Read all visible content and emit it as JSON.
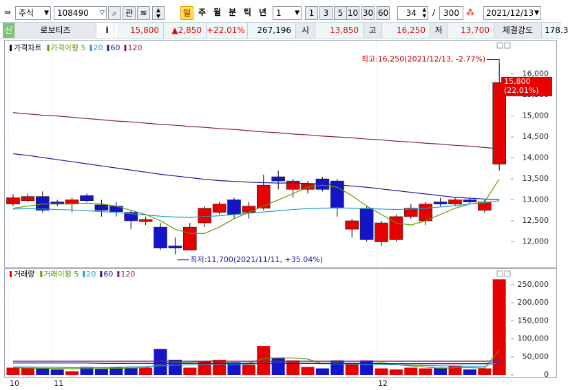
{
  "toolbar": {
    "market": "주식",
    "code": "108490",
    "watch": "관",
    "periods": [
      "일",
      "주",
      "월",
      "분",
      "틱",
      "년"
    ],
    "interval": "1",
    "intervals": [
      "1",
      "3",
      "5",
      "10",
      "30",
      "60"
    ],
    "count": "34",
    "separator": "/",
    "total": "300",
    "date": "2021/12/13"
  },
  "quote": {
    "badge": "신",
    "name": "로보티즈",
    "info": "i",
    "price": "15,800",
    "change": "▲2,850",
    "change_rate": "+22.01%",
    "volume": "267,196",
    "open_label": "시",
    "open": "13,850",
    "high_label": "고",
    "high": "16,250",
    "low_label": "저",
    "low": "13,700",
    "strength_label": "체결강도",
    "strength": "178.3"
  },
  "chart_data": [
    {
      "type": "candlestick",
      "title": "가격차트",
      "up_color": "#e60000",
      "down_color": "#1414c8",
      "categories": [
        "10",
        null,
        null,
        "11",
        null,
        null,
        null,
        null,
        null,
        null,
        null,
        null,
        null,
        null,
        null,
        null,
        null,
        null,
        null,
        null,
        null,
        null,
        null,
        null,
        null,
        "12",
        null,
        null,
        null,
        null,
        null,
        null,
        null,
        null
      ],
      "open": [
        12900,
        12980,
        13080,
        12950,
        12900,
        13100,
        12880,
        12850,
        12700,
        12480,
        12350,
        11900,
        11800,
        12450,
        12700,
        13000,
        12700,
        12800,
        13550,
        13250,
        13250,
        13500,
        13450,
        12300,
        12800,
        12000,
        12050,
        12600,
        12500,
        12950,
        12900,
        13000,
        12750,
        13850
      ],
      "high": [
        13130,
        13150,
        13200,
        13000,
        13050,
        13150,
        13000,
        12950,
        12750,
        12600,
        12450,
        12100,
        12450,
        12850,
        12950,
        13050,
        12950,
        13600,
        13700,
        13500,
        13450,
        13550,
        13500,
        12550,
        12850,
        12500,
        12650,
        12900,
        12950,
        13050,
        13050,
        13050,
        13000,
        16250
      ],
      "low": [
        12850,
        12950,
        12700,
        12850,
        12700,
        12950,
        12600,
        12600,
        12300,
        12400,
        11800,
        11700,
        11800,
        12350,
        12650,
        12550,
        12550,
        12750,
        13250,
        13050,
        13150,
        13200,
        12600,
        12100,
        12000,
        11900,
        12000,
        12550,
        12400,
        12850,
        12850,
        12900,
        12700,
        13700
      ],
      "close": [
        13050,
        13080,
        12750,
        12900,
        13000,
        12980,
        12750,
        12720,
        12500,
        12530,
        11850,
        11850,
        12350,
        12800,
        12900,
        12650,
        12850,
        13350,
        13450,
        13450,
        13380,
        13250,
        12800,
        12500,
        12050,
        12450,
        12600,
        12800,
        12900,
        12900,
        13000,
        12950,
        12950,
        15800
      ],
      "overlays": [
        {
          "name": "가격이평 5",
          "color": "#5a9a00",
          "values": [
            12800,
            12850,
            12900,
            12900,
            12900,
            12920,
            12900,
            12850,
            12750,
            12650,
            12500,
            12300,
            12200,
            12200,
            12350,
            12550,
            12700,
            12850,
            13000,
            13150,
            13300,
            13350,
            13300,
            13100,
            12850,
            12650,
            12450,
            12400,
            12500,
            12650,
            12800,
            12900,
            12950,
            13500
          ]
        },
        {
          "name": "20",
          "color": "#1e9ad6",
          "values": [
            12780,
            12790,
            12780,
            12770,
            12760,
            12740,
            12720,
            12700,
            12670,
            12640,
            12610,
            12590,
            12580,
            12600,
            12620,
            12650,
            12680,
            12710,
            12740,
            12770,
            12790,
            12800,
            12810,
            12800,
            12790,
            12780,
            12770,
            12780,
            12800,
            12830,
            12860,
            12900,
            12930,
            12980
          ]
        },
        {
          "name": "60",
          "color": "#1a1a9a",
          "values": [
            14100,
            14060,
            14010,
            13960,
            13910,
            13860,
            13810,
            13760,
            13710,
            13660,
            13610,
            13570,
            13530,
            13490,
            13460,
            13440,
            13420,
            13410,
            13400,
            13400,
            13390,
            13380,
            13360,
            13330,
            13300,
            13260,
            13220,
            13180,
            13140,
            13100,
            13060,
            13040,
            13020,
            13010
          ]
        },
        {
          "name": "120",
          "color": "#8a1a5a",
          "values": [
            15080,
            15050,
            15020,
            15000,
            14970,
            14940,
            14910,
            14880,
            14860,
            14830,
            14800,
            14780,
            14750,
            14730,
            14700,
            14680,
            14650,
            14620,
            14600,
            14570,
            14550,
            14520,
            14500,
            14480,
            14450,
            14430,
            14400,
            14380,
            14350,
            14330,
            14300,
            14280,
            14250,
            14220
          ]
        }
      ],
      "ylim": [
        11450,
        16750
      ],
      "yticks": [
        {
          "value": 12000,
          "label": "12,000"
        },
        {
          "value": 12500,
          "label": "12,500"
        },
        {
          "value": 13000,
          "label": "13,000"
        },
        {
          "value": 13500,
          "label": "13,500"
        },
        {
          "value": 14000,
          "label": "14,000"
        },
        {
          "value": 14500,
          "label": "14,500"
        },
        {
          "value": 15000,
          "label": "15,000"
        },
        {
          "value": 15500,
          "label": "15,500"
        },
        {
          "value": 16000,
          "label": "16,000"
        }
      ],
      "price_tag": [
        "15,800",
        "(22.01%)"
      ],
      "high_annotation": "최고:16,250(2021/12/13, -2.77%)",
      "low_annotation": "최저:11,700(2021/11/11, +35.04%)"
    },
    {
      "type": "bar",
      "title": "거래량",
      "values": [
        20000,
        20000,
        18000,
        15000,
        10000,
        22000,
        18000,
        20000,
        20000,
        20000,
        72000,
        42000,
        20000,
        38000,
        42000,
        35000,
        28000,
        80000,
        48000,
        40000,
        22000,
        18000,
        40000,
        30000,
        40000,
        18000,
        15000,
        20000,
        18000,
        20000,
        25000,
        15000,
        18000,
        265000
      ],
      "overlays": [
        {
          "name": "거래이평 5",
          "color": "#5a9a00",
          "values": [
            20000,
            19000,
            18000,
            18000,
            17000,
            17000,
            17000,
            18000,
            19000,
            20000,
            30000,
            35000,
            35000,
            38000,
            39000,
            31000,
            33000,
            45000,
            47000,
            47000,
            44000,
            31000,
            34000,
            30000,
            30000,
            34000,
            28000,
            25000,
            22000,
            18000,
            20000,
            20000,
            19000,
            68000
          ]
        },
        {
          "name": "20",
          "color": "#1e9ad6",
          "values": [
            22000,
            22000,
            21000,
            21000,
            20000,
            20000,
            20000,
            21000,
            22000,
            23000,
            25000,
            27000,
            28000,
            29000,
            30000,
            30000,
            30000,
            32000,
            33000,
            33000,
            32000,
            31000,
            31000,
            30000,
            30000,
            29000,
            28000,
            27000,
            26000,
            25000,
            25000,
            24000,
            24000,
            35000
          ]
        },
        {
          "name": "60",
          "color": "#1a1a9a",
          "values": [
            33000,
            33000,
            33000,
            33000,
            33000,
            33000,
            32000,
            32000,
            32000,
            32000,
            32000,
            32000,
            32000,
            32000,
            32000,
            32000,
            32000,
            32000,
            32000,
            32000,
            32000,
            32000,
            32000,
            32000,
            32000,
            31000,
            31000,
            31000,
            31000,
            31000,
            31000,
            31000,
            31000,
            35000
          ]
        },
        {
          "name": "120",
          "color": "#8a1a5a",
          "values": [
            38000,
            38000,
            38000,
            38000,
            38000,
            38000,
            38000,
            38000,
            38000,
            38000,
            38000,
            38000,
            38000,
            38000,
            38000,
            38000,
            38000,
            38000,
            38000,
            38000,
            38000,
            38000,
            38000,
            38000,
            38000,
            38000,
            38000,
            38000,
            38000,
            38000,
            38000,
            38000,
            38000,
            39000
          ]
        }
      ],
      "ylim": [
        -5700,
        292000
      ],
      "yticks": [
        0,
        {
          "value": 50000,
          "label": "50,000"
        },
        {
          "value": 100000,
          "label": "100,000"
        },
        {
          "value": 150000,
          "label": "150,000"
        },
        {
          "value": 200000,
          "label": "200,000"
        },
        {
          "value": 250000,
          "label": "250,000"
        }
      ]
    }
  ]
}
